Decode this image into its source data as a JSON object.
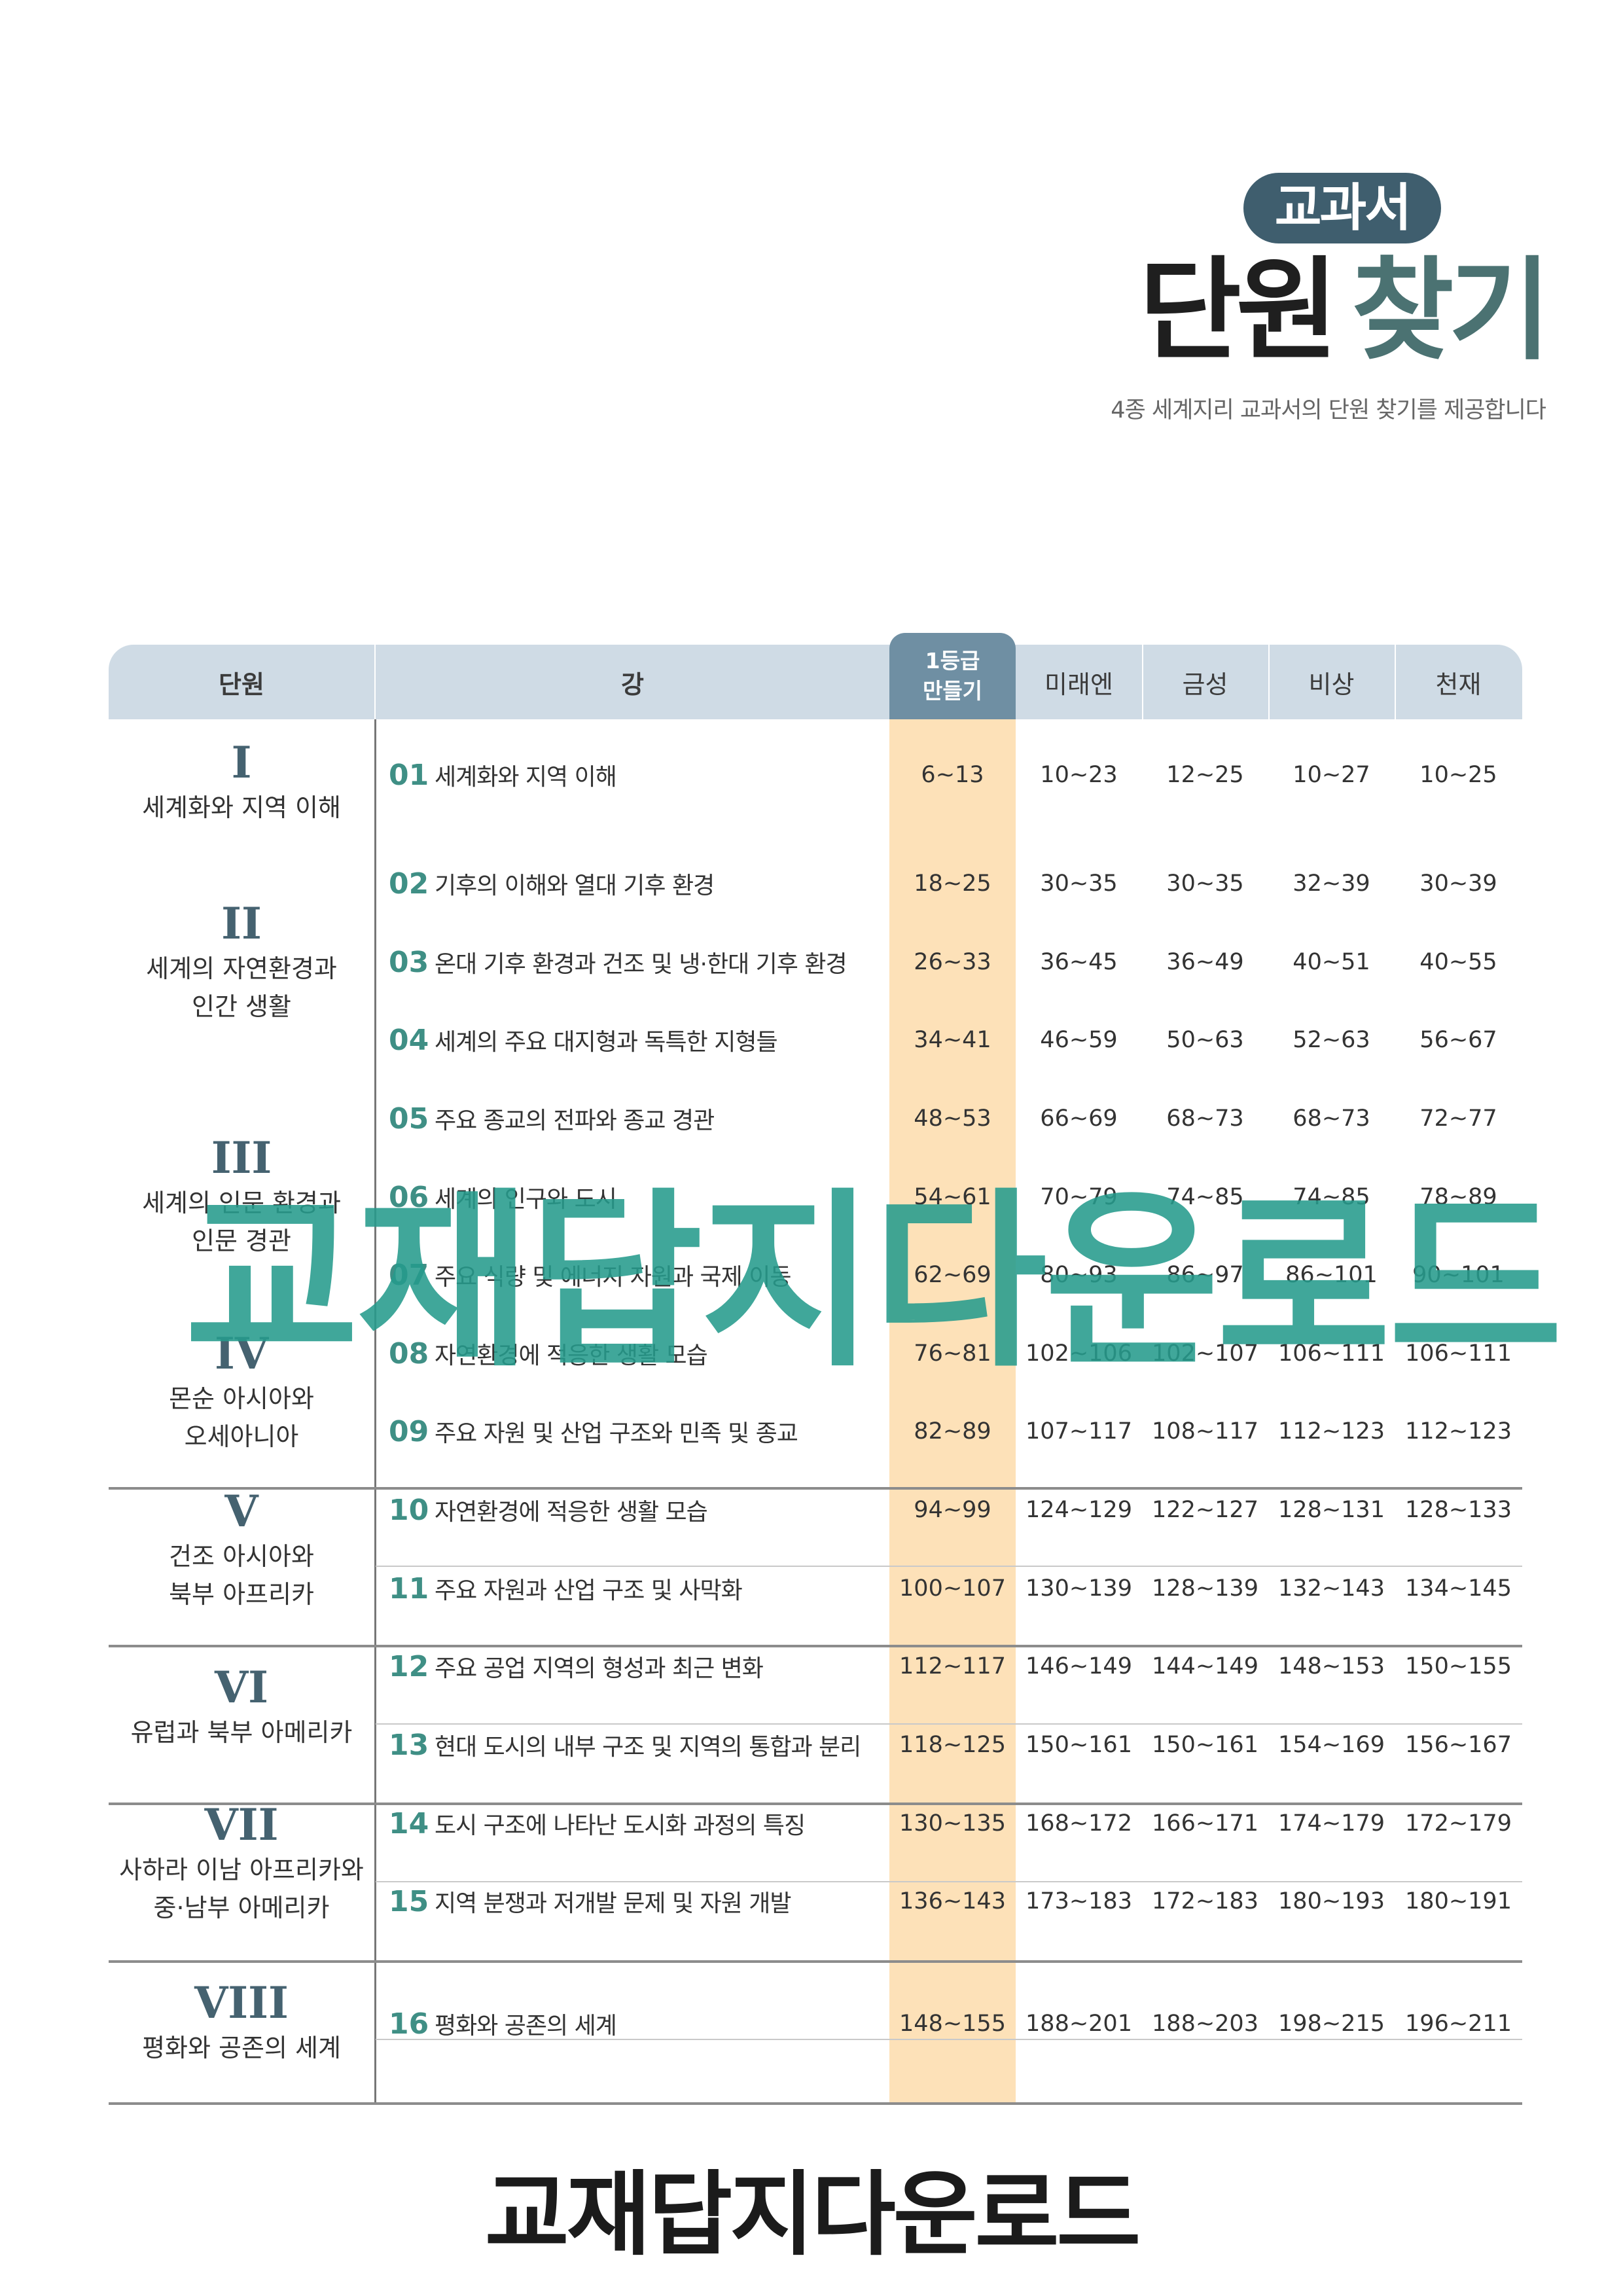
{
  "header": {
    "pill": "교과서",
    "title_part1": "단원",
    "title_part2": "찾기",
    "subtitle": "4종 세계지리 교과서의 단원 찾기를 제공합니다"
  },
  "table": {
    "columns": {
      "unit": "단원",
      "lecture": "강",
      "highlight_line1": "1등급",
      "highlight_line2": "만들기",
      "pub1": "미래엔",
      "pub2": "금성",
      "pub3": "비상",
      "pub4": "천재"
    },
    "units": [
      {
        "num": "I",
        "name": "세계화와 지역 이해"
      },
      {
        "num": "II",
        "name": "세계의 자연환경과\n인간 생활"
      },
      {
        "num": "III",
        "name": "세계의 인문 환경과\n인문 경관"
      },
      {
        "num": "IV",
        "name": "몬순 아시아와\n오세아니아"
      },
      {
        "num": "V",
        "name": "건조 아시아와\n북부 아프리카"
      },
      {
        "num": "VI",
        "name": "유럽과 북부 아메리카"
      },
      {
        "num": "VII",
        "name": "사하라 이남 아프리카와\n중·남부 아메리카"
      },
      {
        "num": "VIII",
        "name": "평화와 공존의 세계"
      }
    ],
    "rows": [
      {
        "no": "01",
        "title": "세계화와 지역 이해",
        "hl": "6~13",
        "p1": "10~23",
        "p2": "12~25",
        "p3": "10~27",
        "p4": "10~25"
      },
      {
        "no": "02",
        "title": "기후의 이해와 열대 기후 환경",
        "hl": "18~25",
        "p1": "30~35",
        "p2": "30~35",
        "p3": "32~39",
        "p4": "30~39"
      },
      {
        "no": "03",
        "title": "온대 기후 환경과 건조 및 냉·한대 기후 환경",
        "hl": "26~33",
        "p1": "36~45",
        "p2": "36~49",
        "p3": "40~51",
        "p4": "40~55"
      },
      {
        "no": "04",
        "title": "세계의 주요 대지형과 독특한 지형들",
        "hl": "34~41",
        "p1": "46~59",
        "p2": "50~63",
        "p3": "52~63",
        "p4": "56~67"
      },
      {
        "no": "05",
        "title": "주요 종교의 전파와 종교 경관",
        "hl": "48~53",
        "p1": "66~69",
        "p2": "68~73",
        "p3": "68~73",
        "p4": "72~77"
      },
      {
        "no": "06",
        "title": "세계의 인구와 도시",
        "hl": "54~61",
        "p1": "70~79",
        "p2": "74~85",
        "p3": "74~85",
        "p4": "78~89"
      },
      {
        "no": "07",
        "title": "주요 식량 및 에너지 자원과 국제 이동",
        "hl": "62~69",
        "p1": "80~93",
        "p2": "86~97",
        "p3": "86~101",
        "p4": "90~101"
      },
      {
        "no": "08",
        "title": "자연환경에 적응한 생활 모습",
        "hl": "76~81",
        "p1": "102~106",
        "p2": "102~107",
        "p3": "106~111",
        "p4": "106~111"
      },
      {
        "no": "09",
        "title": "주요 자원 및 산업 구조와 민족 및 종교",
        "hl": "82~89",
        "p1": "107~117",
        "p2": "108~117",
        "p3": "112~123",
        "p4": "112~123"
      },
      {
        "no": "10",
        "title": "자연환경에 적응한 생활 모습",
        "hl": "94~99",
        "p1": "124~129",
        "p2": "122~127",
        "p3": "128~131",
        "p4": "128~133"
      },
      {
        "no": "11",
        "title": "주요 자원과 산업 구조 및 사막화",
        "hl": "100~107",
        "p1": "130~139",
        "p2": "128~139",
        "p3": "132~143",
        "p4": "134~145"
      },
      {
        "no": "12",
        "title": "주요 공업 지역의 형성과 최근 변화",
        "hl": "112~117",
        "p1": "146~149",
        "p2": "144~149",
        "p3": "148~153",
        "p4": "150~155"
      },
      {
        "no": "13",
        "title": "현대 도시의 내부 구조 및 지역의 통합과 분리",
        "hl": "118~125",
        "p1": "150~161",
        "p2": "150~161",
        "p3": "154~169",
        "p4": "156~167"
      },
      {
        "no": "14",
        "title": "도시 구조에 나타난 도시화 과정의 특징",
        "hl": "130~135",
        "p1": "168~172",
        "p2": "166~171",
        "p3": "174~179",
        "p4": "172~179"
      },
      {
        "no": "15",
        "title": "지역 분쟁과 저개발 문제 및 자원 개발",
        "hl": "136~143",
        "p1": "173~183",
        "p2": "172~183",
        "p3": "180~193",
        "p4": "180~191"
      },
      {
        "no": "16",
        "title": "평화와 공존의 세계",
        "hl": "148~155",
        "p1": "188~201",
        "p2": "188~203",
        "p3": "198~215",
        "p4": "196~211"
      }
    ]
  },
  "watermark": "교재답지다운로드",
  "footer": "교재답지다운로드"
}
